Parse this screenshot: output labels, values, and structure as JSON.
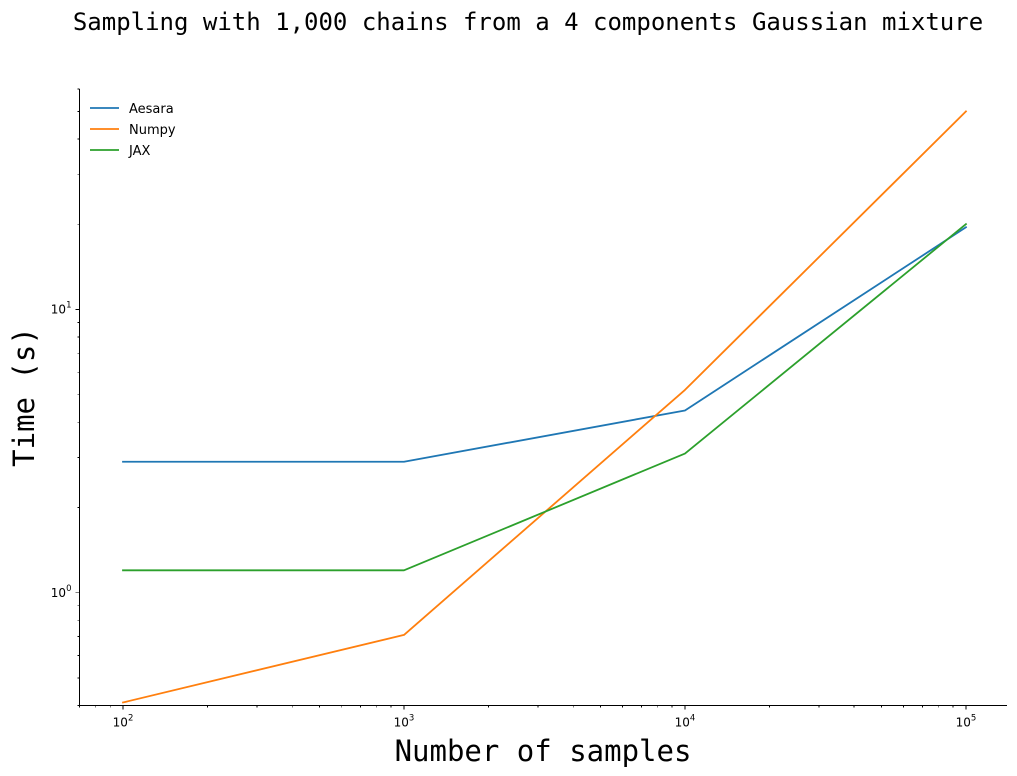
{
  "chart_data": {
    "type": "line",
    "title": "Sampling with 1,000 chains from a 4 components Gaussian mixture",
    "xlabel": "Number of samples",
    "ylabel": "Time (s)",
    "x_scale": "log",
    "y_scale": "log",
    "x": [
      100,
      1000,
      10000,
      100000
    ],
    "xlim": [
      70,
      140000
    ],
    "ylim": [
      0.4,
      60
    ],
    "x_ticks": [
      {
        "value": 100,
        "base": "10",
        "exp": "2"
      },
      {
        "value": 1000,
        "base": "10",
        "exp": "3"
      },
      {
        "value": 10000,
        "base": "10",
        "exp": "4"
      },
      {
        "value": 100000,
        "base": "10",
        "exp": "5"
      }
    ],
    "y_ticks": [
      {
        "value": 1,
        "base": "10",
        "exp": "0"
      },
      {
        "value": 10,
        "base": "10",
        "exp": "1"
      }
    ],
    "grid": false,
    "legend_position": "top-left",
    "series": [
      {
        "name": "Aesara",
        "color": "#1f77b4",
        "values": [
          2.9,
          2.9,
          4.4,
          19.5
        ]
      },
      {
        "name": "Numpy",
        "color": "#ff7f0e",
        "values": [
          0.41,
          0.71,
          5.2,
          50
        ]
      },
      {
        "name": "JAX",
        "color": "#2ca02c",
        "values": [
          1.2,
          1.2,
          3.1,
          20
        ]
      }
    ]
  }
}
